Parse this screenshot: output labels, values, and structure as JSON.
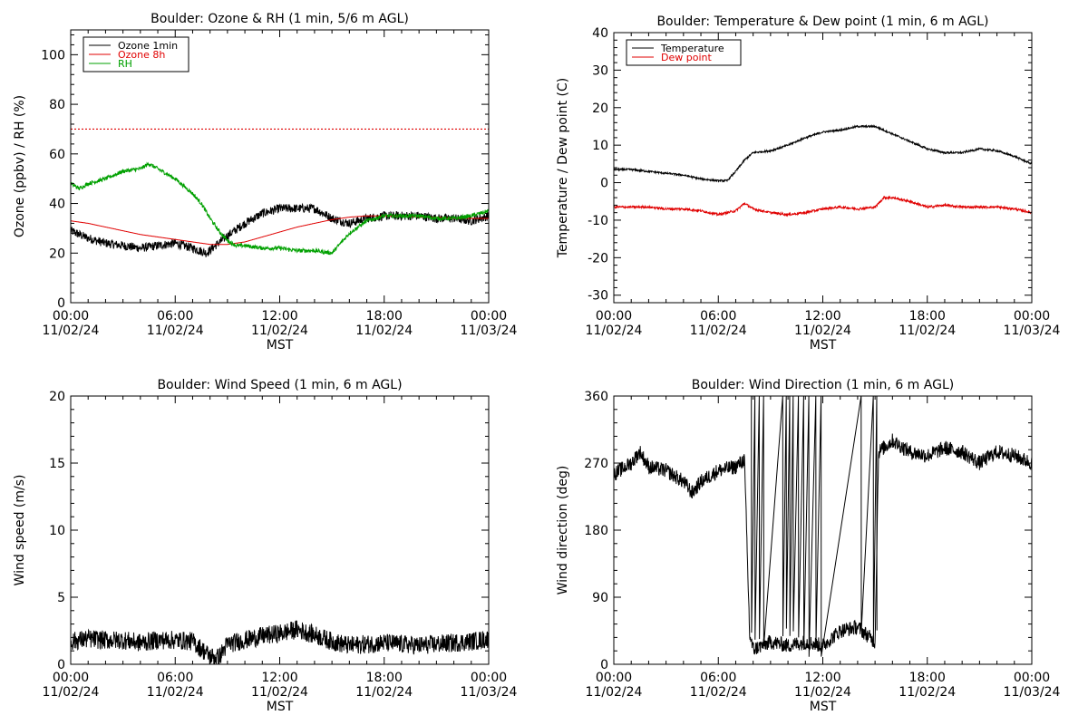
{
  "chart_data": [
    {
      "type": "line",
      "title": "Boulder: Ozone & RH (1 min, 5/6 m AGL)",
      "xlabel": "MST",
      "ylabel": "Ozone (ppbv) / RH (%)",
      "xlim": [
        0,
        24
      ],
      "ylim": [
        0,
        110
      ],
      "yticks": [
        0,
        20,
        40,
        60,
        80,
        100
      ],
      "xtick_labels": [
        [
          "00:00",
          "11/02/24"
        ],
        [
          "06:00",
          "11/02/24"
        ],
        [
          "12:00",
          "11/02/24"
        ],
        [
          "18:00",
          "11/02/24"
        ],
        [
          "00:00",
          "11/03/24"
        ]
      ],
      "legend": {
        "placement": "top-left",
        "entries": [
          "Ozone 1min",
          "Ozone 8h",
          "RH"
        ]
      },
      "reference_lines": [
        {
          "y": 70,
          "color": "#e00000",
          "style": "dotted"
        }
      ],
      "series": [
        {
          "name": "Ozone 1min",
          "color": "#000000",
          "noise": 1.8,
          "x": [
            0,
            1,
            2,
            3,
            4,
            5,
            6,
            7,
            7.8,
            8.3,
            9,
            10,
            11,
            12,
            13,
            14,
            15,
            16,
            17,
            18,
            19,
            20,
            21,
            22,
            23,
            24
          ],
          "y": [
            29,
            26,
            24,
            23,
            22,
            23,
            24,
            22,
            20,
            23,
            27,
            32,
            36,
            38,
            38,
            38,
            34,
            32,
            34,
            35,
            35,
            35,
            34,
            34,
            33,
            35
          ]
        },
        {
          "name": "Ozone 8h",
          "color": "#e00000",
          "noise": 0,
          "x": [
            0,
            1,
            2,
            3,
            4,
            5,
            6,
            7,
            8,
            9,
            10,
            11,
            12,
            13,
            14,
            15,
            16,
            17,
            18,
            19,
            20,
            21,
            22,
            23,
            24
          ],
          "y": [
            33,
            32,
            30.5,
            29,
            27.5,
            26.5,
            25.5,
            24.5,
            23.5,
            23.5,
            24.5,
            26.5,
            28.5,
            30.5,
            32,
            33.5,
            34.5,
            35,
            35,
            35,
            34.5,
            34.5,
            34,
            34,
            34
          ]
        },
        {
          "name": "RH",
          "color": "#00a000",
          "noise": 0.8,
          "x": [
            0,
            0.5,
            1,
            2,
            3,
            4,
            4.5,
            5,
            6,
            7,
            7.5,
            8,
            8.5,
            9,
            9.5,
            10,
            11,
            12,
            13,
            14,
            15,
            15.5,
            16,
            17,
            18,
            19,
            20,
            21,
            22,
            23,
            24
          ],
          "y": [
            48,
            46,
            48,
            50,
            53,
            54,
            56,
            54,
            50,
            44,
            40,
            34,
            29,
            25,
            23,
            23,
            22,
            22,
            21,
            21,
            20,
            24,
            28,
            33,
            35,
            35,
            35,
            34,
            34,
            35,
            37
          ]
        }
      ]
    },
    {
      "type": "line",
      "title": "Boulder: Temperature & Dew point (1 min, 6 m AGL)",
      "xlabel": "MST",
      "ylabel": "Temperature / Dew point (C)",
      "xlim": [
        0,
        24
      ],
      "ylim": [
        -32,
        40
      ],
      "yticks": [
        -30,
        -20,
        -10,
        0,
        10,
        20,
        30,
        40
      ],
      "xtick_labels": [
        [
          "00:00",
          "11/02/24"
        ],
        [
          "06:00",
          "11/02/24"
        ],
        [
          "12:00",
          "11/02/24"
        ],
        [
          "18:00",
          "11/02/24"
        ],
        [
          "00:00",
          "11/03/24"
        ]
      ],
      "legend": {
        "placement": "top-left",
        "entries": [
          "Temperature",
          "Dew point"
        ]
      },
      "series": [
        {
          "name": "Temperature",
          "color": "#000000",
          "noise": 0.25,
          "x": [
            0,
            1,
            2,
            3,
            4,
            5,
            6,
            6.5,
            7,
            7.5,
            8,
            9,
            10,
            11,
            12,
            13,
            14,
            15,
            15.5,
            16,
            17,
            18,
            19,
            20,
            21,
            22,
            23,
            24
          ],
          "y": [
            3.5,
            3.5,
            3,
            2.5,
            2,
            1,
            0.5,
            0.5,
            3,
            6,
            8,
            8.5,
            10,
            12,
            13.5,
            14,
            15,
            15,
            14,
            13,
            11,
            9,
            8,
            8,
            9,
            8.5,
            7,
            5
          ]
        },
        {
          "name": "Dew point",
          "color": "#e00000",
          "noise": 0.3,
          "x": [
            0,
            1,
            2,
            3,
            4,
            5,
            6,
            7,
            7.5,
            8,
            9,
            10,
            11,
            12,
            13,
            14,
            15,
            15.5,
            16,
            17,
            18,
            19,
            20,
            21,
            22,
            23,
            24
          ],
          "y": [
            -6.5,
            -6.5,
            -6.5,
            -7,
            -7,
            -7.5,
            -8.5,
            -7.5,
            -5.5,
            -7,
            -8,
            -8.5,
            -8,
            -7,
            -6.5,
            -7,
            -6.5,
            -4,
            -4,
            -5,
            -6.5,
            -6,
            -6.5,
            -6.5,
            -6.5,
            -7,
            -8
          ]
        }
      ]
    },
    {
      "type": "line",
      "title": "Boulder: Wind Speed (1 min, 6 m AGL)",
      "xlabel": "MST",
      "ylabel": "Wind speed (m/s)",
      "xlim": [
        0,
        24
      ],
      "ylim": [
        0,
        20
      ],
      "yticks": [
        0,
        5,
        10,
        15,
        20
      ],
      "xtick_labels": [
        [
          "00:00",
          "11/02/24"
        ],
        [
          "06:00",
          "11/02/24"
        ],
        [
          "12:00",
          "11/02/24"
        ],
        [
          "18:00",
          "11/02/24"
        ],
        [
          "00:00",
          "11/03/24"
        ]
      ],
      "series": [
        {
          "name": "",
          "color": "#000000",
          "noise": 0.7,
          "x": [
            0,
            1,
            2,
            3,
            4,
            5,
            6,
            7,
            8,
            8.5,
            9,
            10,
            11,
            12,
            13,
            14,
            15,
            16,
            17,
            18,
            19,
            20,
            21,
            22,
            23,
            24
          ],
          "y": [
            1.7,
            1.9,
            1.8,
            1.8,
            1.6,
            1.8,
            1.8,
            1.7,
            0.6,
            0.5,
            1.5,
            1.8,
            2.1,
            2.3,
            2.6,
            2.2,
            1.7,
            1.4,
            1.5,
            1.6,
            1.5,
            1.4,
            1.5,
            1.6,
            1.7,
            1.9
          ]
        }
      ]
    },
    {
      "type": "line",
      "title": "Boulder: Wind Direction (1 min, 6 m AGL)",
      "xlabel": "MST",
      "ylabel": "Wind direction (deg)",
      "xlim": [
        0,
        24
      ],
      "ylim": [
        0,
        360
      ],
      "yticks": [
        0,
        90,
        180,
        270,
        360
      ],
      "xtick_labels": [
        [
          "00:00",
          "11/02/24"
        ],
        [
          "06:00",
          "11/02/24"
        ],
        [
          "12:00",
          "11/02/24"
        ],
        [
          "18:00",
          "11/02/24"
        ],
        [
          "00:00",
          "11/03/24"
        ]
      ],
      "series": [
        {
          "name": "",
          "color": "#000000",
          "noise": 10,
          "x": [
            0,
            1,
            1.5,
            2,
            3,
            4,
            4.5,
            5,
            6,
            7,
            7.5,
            7.8,
            8,
            9,
            10,
            11,
            12,
            13,
            14,
            15,
            15.2,
            16,
            17,
            18,
            19,
            20,
            21,
            22,
            23,
            24
          ],
          "y": [
            255,
            270,
            285,
            265,
            260,
            245,
            230,
            245,
            260,
            265,
            275,
            40,
            20,
            30,
            25,
            30,
            25,
            45,
            50,
            30,
            285,
            300,
            285,
            280,
            290,
            285,
            270,
            285,
            280,
            270
          ]
        }
      ]
    }
  ]
}
